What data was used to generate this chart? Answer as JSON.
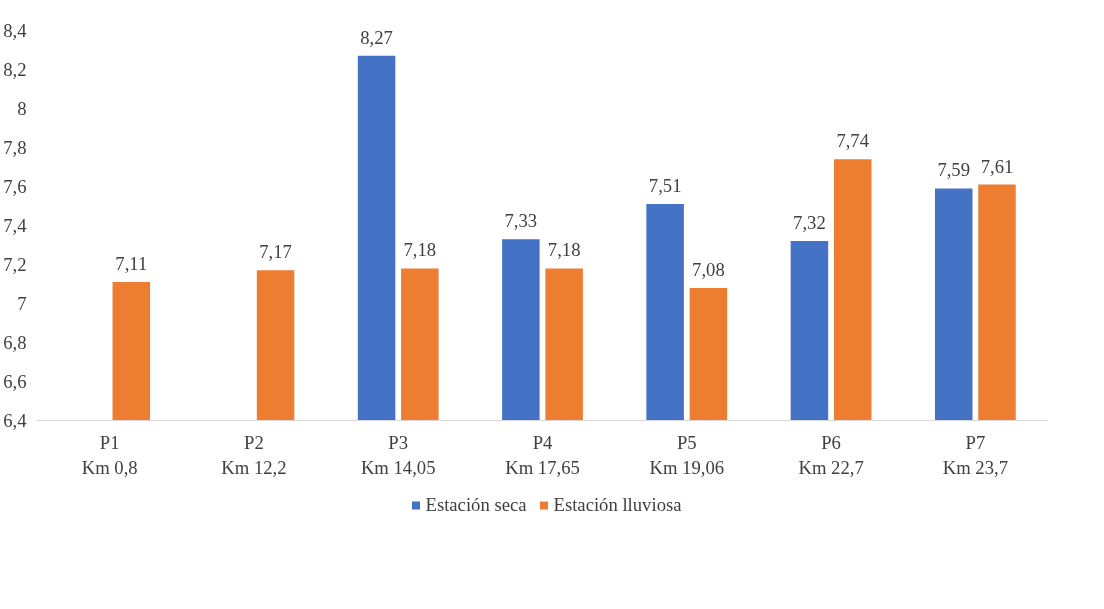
{
  "chart_data": {
    "type": "bar",
    "categories": [
      "P1\nKm 0,8",
      "P2\nKm 12,2",
      "P3\nKm 14,05",
      "P4\nKm 17,65",
      "P5\nKm 19,06",
      "P6\nKm 22,7",
      "P7\nKm 23,7"
    ],
    "series": [
      {
        "name": "Estación seca",
        "color": "#4472c4",
        "values": [
          null,
          null,
          8.27,
          7.33,
          7.51,
          7.32,
          7.59
        ],
        "value_labels": [
          null,
          null,
          "8,27",
          "7,33",
          "7,51",
          "7,32",
          "7,59"
        ]
      },
      {
        "name": "Estación lluviosa",
        "color": "#ed7d31",
        "values": [
          7.11,
          7.17,
          7.18,
          7.18,
          7.08,
          7.74,
          7.61
        ],
        "value_labels": [
          "7,11",
          "7,17",
          "7,18",
          "7,18",
          "7,08",
          "7,74",
          "7,61"
        ]
      }
    ],
    "ylim": [
      6.4,
      8.4
    ],
    "yticks": [
      {
        "value": 6.4,
        "label": "6,4"
      },
      {
        "value": 6.6,
        "label": "6,6"
      },
      {
        "value": 6.8,
        "label": "6,8"
      },
      7,
      {
        "value": 7.2,
        "label": "7,2"
      },
      {
        "value": 7.4,
        "label": "7,4"
      },
      {
        "value": 7.6,
        "label": "7,6"
      },
      {
        "value": 7.8,
        "label": "7,8"
      },
      8,
      {
        "value": 8.2,
        "label": "8,2"
      },
      {
        "value": 8.4,
        "label": "8,4"
      }
    ],
    "grid": false,
    "legend": "bottom"
  }
}
